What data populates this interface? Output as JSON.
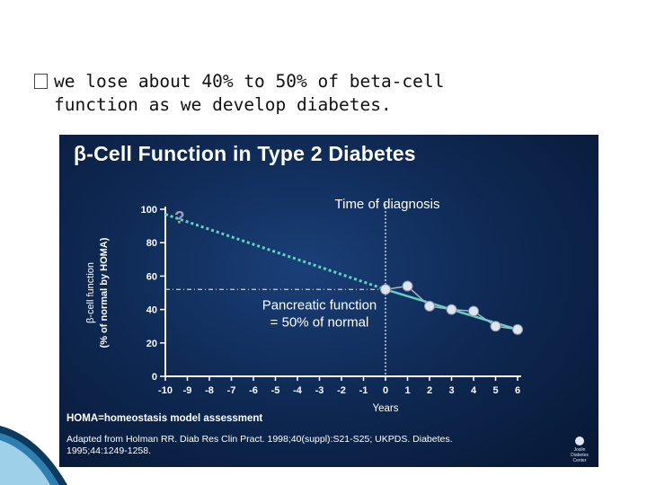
{
  "bullet": {
    "icon": "box-bullet-icon",
    "text": "we lose about 40% to 50% of beta-cell function as we develop diabetes."
  },
  "slide": {
    "title": "β-Cell Function in Type 2 Diabetes",
    "footer_homa": "HOMA=homeostasis model assessment",
    "footer_ref_1": "Adapted from Holman RR. Diab Res Clin Pract. 1998;40(suppl):S21-S25; UKPDS. Diabetes.",
    "footer_ref_2": "1995;44:1249-1258.",
    "logo_text": "Joslin Diabetes Center"
  },
  "chart_data": {
    "type": "line",
    "title": "β-Cell Function in Type 2 Diabetes",
    "xlabel": "Years",
    "ylabel": "β-cell function (% of normal by HOMA)",
    "xlim": [
      -10,
      6
    ],
    "ylim": [
      0,
      100
    ],
    "xticks": [
      -10,
      -9,
      -8,
      -7,
      -6,
      -5,
      -4,
      -3,
      -2,
      -1,
      0,
      1,
      2,
      3,
      4,
      5,
      6
    ],
    "yticks": [
      0,
      20,
      40,
      60,
      80,
      100
    ],
    "series": [
      {
        "values": [
          [
            0,
            52
          ],
          [
            1,
            54
          ],
          [
            2,
            42
          ],
          [
            3,
            40
          ],
          [
            4,
            39
          ],
          [
            5,
            30
          ],
          [
            6,
            28
          ]
        ],
        "color": "#dde5f0"
      },
      {
        "values": [
          [
            0,
            52
          ],
          [
            6,
            28
          ]
        ],
        "color": "#5fd3c0"
      }
    ],
    "extrapolation": {
      "from": [
        -10,
        97
      ],
      "to": [
        0,
        52
      ],
      "label": "?",
      "color": "#5fd3c0"
    },
    "reference_level": {
      "y": 52
    },
    "annotations": [
      {
        "text": "Time of diagnosis",
        "x": 0
      },
      {
        "text": "Pancreatic function",
        "line2": "= 50% of normal"
      }
    ],
    "colors": {
      "axis": "#ffffff",
      "diagnosis_line": "#c8d0dc",
      "question_mark": "#9aa3ad"
    }
  }
}
